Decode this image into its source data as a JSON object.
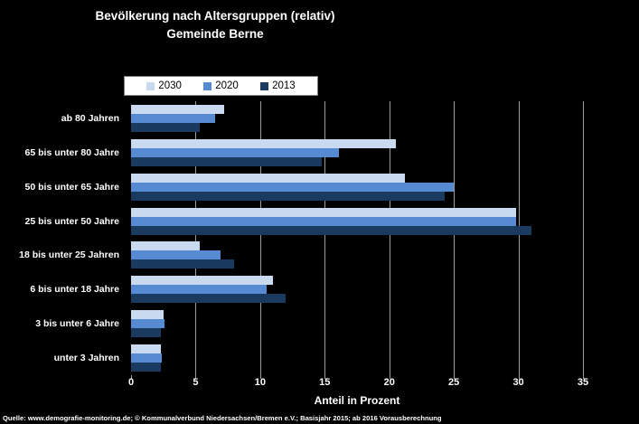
{
  "title": {
    "line1": "Bevölkerung nach Altersgruppen (relativ)",
    "line2": "Gemeinde Berne"
  },
  "axis": {
    "xlabel": "Anteil in Prozent"
  },
  "source": "Quelle: www.demografie-monitoring.de; © Kommunalverbund Niedersachsen/Bremen e.V.; Basisjahr 2015; ab 2016 Vorausberechnung",
  "colors": {
    "background": "#000000",
    "text": "#ffffff",
    "gridline": "#9c9c9c",
    "legend_background": "#ffffff",
    "series_2030": "#c9d9f0",
    "series_2020": "#568ad3",
    "series_2013": "#1b3a60"
  },
  "chart_data": {
    "type": "bar",
    "orientation": "horizontal",
    "title": "Bevölkerung nach Altersgruppen (relativ) Gemeinde Berne",
    "xlabel": "Anteil in Prozent",
    "xlim": [
      0,
      35
    ],
    "xticks": [
      0,
      5,
      10,
      15,
      20,
      25,
      30,
      35
    ],
    "grid": true,
    "legend_position": "top",
    "categories": [
      "ab 80 Jahren",
      "65 bis unter 80 Jahre",
      "50 bis unter 65 Jahre",
      "25 bis unter 50 Jahre",
      "18 bis unter 25 Jahren",
      "6 bis unter 18 Jahre",
      "3 bis unter 6 Jahre",
      "unter 3 Jahren"
    ],
    "categories_order": "top-to-bottom",
    "series": [
      {
        "name": "2030",
        "color": "#c9d9f0",
        "values": [
          7.2,
          20.5,
          21.2,
          29.8,
          5.3,
          11.0,
          2.5,
          2.3
        ]
      },
      {
        "name": "2020",
        "color": "#568ad3",
        "values": [
          6.5,
          16.1,
          25.0,
          29.8,
          6.9,
          10.5,
          2.6,
          2.4
        ]
      },
      {
        "name": "2013",
        "color": "#1b3a60",
        "values": [
          5.3,
          14.8,
          24.3,
          31.0,
          8.0,
          12.0,
          2.3,
          2.3
        ]
      }
    ]
  }
}
